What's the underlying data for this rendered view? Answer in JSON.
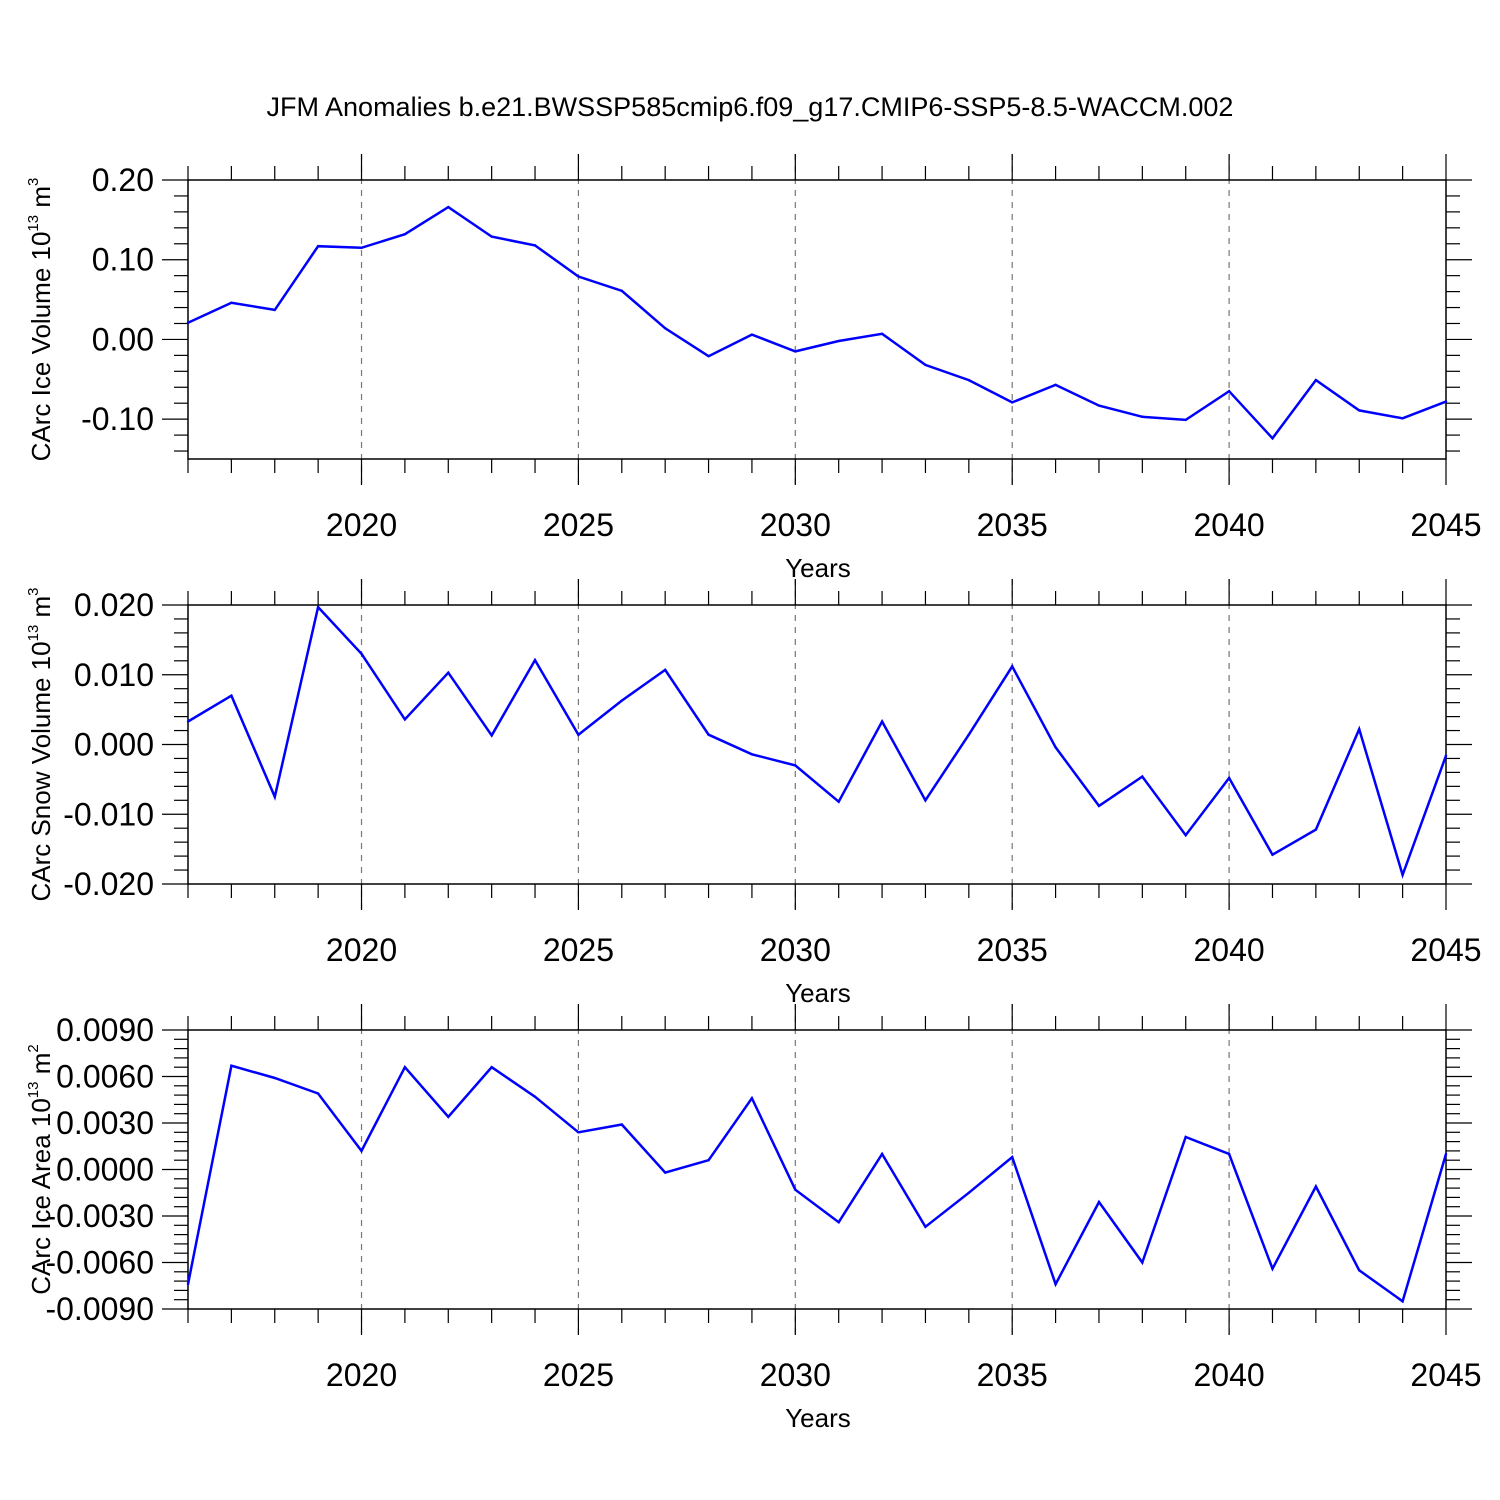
{
  "title": "JFM Anomalies b.e21.BWSSP585cmip6.f09_g17.CMIP6-SSP5-8.5-WACCM.002",
  "colors": {
    "line": "#0000ff",
    "grid": "#777777",
    "axis": "#000000"
  },
  "chart_data": [
    {
      "type": "line",
      "ylabel": {
        "main": "CArc Ice Volume 10",
        "exp": "13",
        "unit": " m",
        "unit_exp": "3"
      },
      "xlabel": "Years",
      "xlim": [
        2016,
        2045
      ],
      "ylim": [
        -0.15,
        0.2
      ],
      "yticks": [
        -0.1,
        0.0,
        0.1,
        0.2
      ],
      "ytick_labels": [
        "-0.10",
        "0.00",
        "0.10",
        "0.20"
      ],
      "xticks": [
        2020,
        2025,
        2030,
        2035,
        2040,
        2045
      ],
      "xtick_labels": [
        "2020",
        "2025",
        "2030",
        "2035",
        "2040",
        "2045"
      ],
      "x": [
        2016,
        2017,
        2018,
        2019,
        2020,
        2021,
        2022,
        2023,
        2024,
        2025,
        2026,
        2027,
        2028,
        2029,
        2030,
        2031,
        2032,
        2033,
        2034,
        2035,
        2036,
        2037,
        2038,
        2039,
        2040,
        2041,
        2042,
        2043,
        2044,
        2045
      ],
      "values": [
        0.021,
        0.046,
        0.037,
        0.117,
        0.115,
        0.132,
        0.166,
        0.129,
        0.118,
        0.079,
        0.061,
        0.014,
        -0.021,
        0.006,
        -0.015,
        -0.002,
        0.007,
        -0.032,
        -0.051,
        -0.079,
        -0.057,
        -0.083,
        -0.097,
        -0.101,
        -0.065,
        -0.124,
        -0.051,
        -0.089,
        -0.099,
        -0.078
      ]
    },
    {
      "type": "line",
      "ylabel": {
        "main": "CArc Snow Volume 10",
        "exp": "13",
        "unit": " m",
        "unit_exp": "3"
      },
      "xlabel": "Years",
      "xlim": [
        2016,
        2045
      ],
      "ylim": [
        -0.02,
        0.02
      ],
      "yticks": [
        -0.02,
        -0.01,
        0.0,
        0.01,
        0.02
      ],
      "ytick_labels": [
        "-0.020",
        "-0.010",
        "0.000",
        "0.010",
        "0.020"
      ],
      "xticks": [
        2020,
        2025,
        2030,
        2035,
        2040,
        2045
      ],
      "xtick_labels": [
        "2020",
        "2025",
        "2030",
        "2035",
        "2040",
        "2045"
      ],
      "x": [
        2016,
        2017,
        2018,
        2019,
        2020,
        2021,
        2022,
        2023,
        2024,
        2025,
        2026,
        2027,
        2028,
        2029,
        2030,
        2031,
        2032,
        2033,
        2034,
        2035,
        2036,
        2037,
        2038,
        2039,
        2040,
        2041,
        2042,
        2043,
        2044,
        2045
      ],
      "values": [
        0.0033,
        0.007,
        -0.0075,
        0.0197,
        0.013,
        0.0036,
        0.0103,
        0.0013,
        0.0121,
        0.0014,
        0.0063,
        0.0107,
        0.0014,
        -0.0014,
        -0.003,
        -0.0082,
        0.0033,
        -0.008,
        0.0014,
        0.0112,
        -0.0004,
        -0.0088,
        -0.0046,
        -0.013,
        -0.0048,
        -0.0158,
        -0.0122,
        0.0022,
        -0.0187,
        -0.0016
      ]
    },
    {
      "type": "line",
      "ylabel": {
        "main": "CArc Ice Area 10",
        "exp": "13",
        "unit": " m",
        "unit_exp": "2"
      },
      "xlabel": "Years",
      "xlim": [
        2016,
        2045
      ],
      "ylim": [
        -0.009,
        0.009
      ],
      "yticks": [
        -0.009,
        -0.006,
        -0.003,
        0.0,
        0.003,
        0.006,
        0.009
      ],
      "ytick_labels": [
        "-0.0090",
        "-0.0060",
        "-0.0030",
        "0.0000",
        "0.0030",
        "0.0060",
        "0.0090"
      ],
      "xticks": [
        2020,
        2025,
        2030,
        2035,
        2040,
        2045
      ],
      "xtick_labels": [
        "2020",
        "2025",
        "2030",
        "2035",
        "2040",
        "2045"
      ],
      "x": [
        2016,
        2017,
        2018,
        2019,
        2020,
        2021,
        2022,
        2023,
        2024,
        2025,
        2026,
        2027,
        2028,
        2029,
        2030,
        2031,
        2032,
        2033,
        2034,
        2035,
        2036,
        2037,
        2038,
        2039,
        2040,
        2041,
        2042,
        2043,
        2044,
        2045
      ],
      "values": [
        -0.0074,
        0.0067,
        0.0059,
        0.0049,
        0.0012,
        0.0066,
        0.0034,
        0.0066,
        0.0047,
        0.0024,
        0.0029,
        -0.0002,
        0.0006,
        0.0046,
        -0.0013,
        -0.0034,
        0.001,
        -0.0037,
        -0.0015,
        0.0008,
        -0.0074,
        -0.0021,
        -0.006,
        0.0021,
        0.001,
        -0.0064,
        -0.0011,
        -0.0065,
        -0.0085,
        0.001
      ]
    }
  ]
}
